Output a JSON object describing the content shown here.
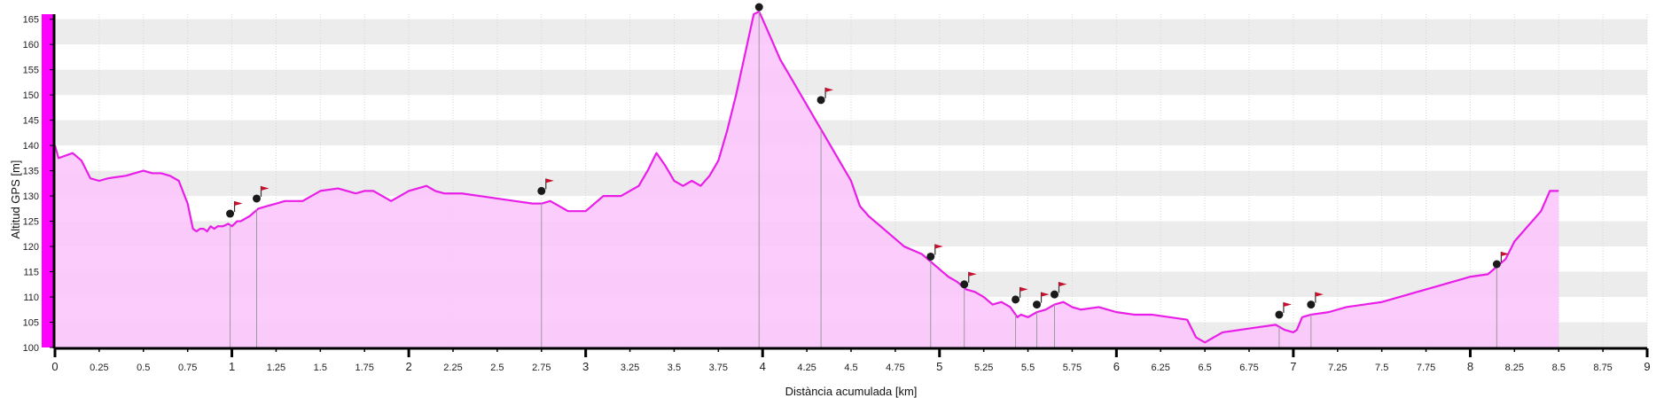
{
  "chart_data": {
    "type": "area",
    "xlabel": "Distància acumulada [km]",
    "ylabel": "Altitud GPS [m]",
    "xlim": [
      0,
      9
    ],
    "ylim": [
      100,
      166
    ],
    "grid": true,
    "x_ticks": [
      "0",
      "0.25",
      "0.5",
      "0.75",
      "1",
      "1.25",
      "1.5",
      "1.75",
      "2",
      "2.25",
      "2.5",
      "2.75",
      "3",
      "3.25",
      "3.5",
      "3.75",
      "4",
      "4.25",
      "4.5",
      "4.75",
      "5",
      "5.25",
      "5.5",
      "5.75",
      "6",
      "6.25",
      "6.5",
      "6.75",
      "7",
      "7.25",
      "7.5",
      "7.75",
      "8",
      "8.25",
      "8.5",
      "8.75",
      "9"
    ],
    "y_ticks": [
      "100",
      "105",
      "110",
      "115",
      "120",
      "125",
      "130",
      "135",
      "140",
      "145",
      "150",
      "155",
      "160",
      "165"
    ],
    "colors": {
      "line": "#e81ee8",
      "fill": "#fcc8fc",
      "band_shade": "#ececec",
      "marker": "#1a1a1a",
      "flag": "#c8102e",
      "y_axis_bar": "#ff00ff"
    },
    "series": [
      {
        "x": [
          0,
          0.02,
          0.1,
          0.15,
          0.2,
          0.25,
          0.3,
          0.4,
          0.45,
          0.5,
          0.55,
          0.6,
          0.65,
          0.7,
          0.75,
          0.78,
          0.8,
          0.82,
          0.84,
          0.86,
          0.88,
          0.9,
          0.92,
          0.95,
          0.98,
          1.0,
          1.03,
          1.05,
          1.1,
          1.15,
          1.2,
          1.25,
          1.3,
          1.4,
          1.5,
          1.6,
          1.7,
          1.75,
          1.8,
          1.9,
          2.0,
          2.1,
          2.15,
          2.2,
          2.3,
          2.4,
          2.5,
          2.6,
          2.7,
          2.75,
          2.8,
          2.9,
          3.0,
          3.1,
          3.2,
          3.3,
          3.35,
          3.4,
          3.45,
          3.5,
          3.55,
          3.6,
          3.65,
          3.7,
          3.75,
          3.8,
          3.85,
          3.9,
          3.95,
          3.98,
          4.0,
          4.05,
          4.1,
          4.15,
          4.2,
          4.25,
          4.3,
          4.35,
          4.4,
          4.5,
          4.55,
          4.6,
          4.7,
          4.8,
          4.9,
          5.0,
          5.05,
          5.1,
          5.15,
          5.2,
          5.25,
          5.3,
          5.35,
          5.4,
          5.42,
          5.44,
          5.46,
          5.5,
          5.55,
          5.6,
          5.65,
          5.7,
          5.75,
          5.8,
          5.9,
          6.0,
          6.1,
          6.2,
          6.3,
          6.4,
          6.45,
          6.5,
          6.55,
          6.6,
          6.7,
          6.8,
          6.9,
          6.95,
          7.0,
          7.02,
          7.05,
          7.1,
          7.2,
          7.3,
          7.4,
          7.5,
          7.6,
          7.7,
          7.8,
          7.9,
          8.0,
          8.1,
          8.15,
          8.2,
          8.25,
          8.3,
          8.4,
          8.45,
          8.5
        ],
        "values": [
          140,
          137.5,
          138.5,
          137,
          133.5,
          133,
          133.5,
          134,
          134.5,
          135,
          134.5,
          134.5,
          134,
          133,
          128.5,
          123.5,
          123,
          123.5,
          123.5,
          123,
          124,
          123.5,
          124,
          124,
          124.5,
          124,
          125,
          125,
          126,
          127.5,
          128,
          128.5,
          129,
          129,
          131,
          131.5,
          130.5,
          131,
          131,
          129,
          131,
          132,
          131,
          130.5,
          130.5,
          130,
          129.5,
          129,
          128.5,
          128.5,
          129,
          127,
          127,
          130,
          130,
          132,
          135,
          138.5,
          136,
          133,
          132,
          133,
          132,
          134,
          137,
          143,
          150,
          158,
          166,
          166.5,
          165,
          161,
          157,
          154,
          151,
          148,
          145,
          142,
          139,
          133,
          128,
          126,
          123,
          120,
          118.5,
          115.5,
          114,
          113,
          111.5,
          111,
          110,
          108.5,
          109,
          108,
          107,
          106,
          106.5,
          106,
          107,
          107.5,
          108.5,
          109,
          108,
          107.5,
          108,
          107,
          106.5,
          106.5,
          106,
          105.5,
          102,
          101,
          102,
          103,
          103.5,
          104,
          104.5,
          103.5,
          103,
          103.5,
          106,
          106.5,
          107,
          108,
          108.5,
          109,
          110,
          111,
          112,
          113,
          114,
          114.5,
          116,
          117.5,
          121,
          123,
          127,
          131,
          131
        ]
      }
    ],
    "waypoints": [
      {
        "x": 0.99,
        "y": 126.5
      },
      {
        "x": 1.14,
        "y": 129.5
      },
      {
        "x": 2.75,
        "y": 131
      },
      {
        "x": 3.98,
        "y": 169
      },
      {
        "x": 4.33,
        "y": 149
      },
      {
        "x": 4.95,
        "y": 118
      },
      {
        "x": 5.14,
        "y": 112.5
      },
      {
        "x": 5.43,
        "y": 109.5
      },
      {
        "x": 5.55,
        "y": 108.5
      },
      {
        "x": 5.65,
        "y": 110.5
      },
      {
        "x": 6.92,
        "y": 106.5
      },
      {
        "x": 7.1,
        "y": 108.5
      },
      {
        "x": 8.15,
        "y": 116.5
      }
    ]
  }
}
